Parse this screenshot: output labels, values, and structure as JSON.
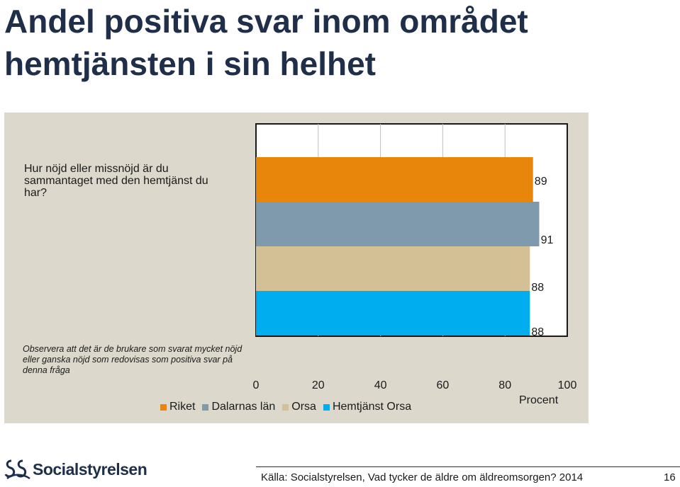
{
  "slide": {
    "title": "Andel positiva svar inom området hemtjänsten i sin helhet",
    "question": "Hur nöjd eller missnöjd är du sammantaget med den hemtjänst du har?",
    "note": "Observera att det är de brukare som svarat mycket nöjd eller ganska nöjd som redovisas som positiva svar på denna fråga",
    "source": "Källa: Socialstyrelsen, Vad tycker de äldre om äldreomsorgen? 2014",
    "page_number": "16",
    "logo_text": "Socialstyrelsen"
  },
  "chart_data": {
    "type": "bar",
    "orientation": "horizontal",
    "xlabel": "Procent",
    "xlim": [
      0,
      100
    ],
    "xticks": [
      "0",
      "20",
      "40",
      "60",
      "80",
      "100"
    ],
    "grid": "vertical",
    "legend_position": "bottom",
    "series": [
      {
        "name": "Riket",
        "value": 89,
        "label": "89",
        "color": "#e8860b"
      },
      {
        "name": "Dalarnas län",
        "value": 91,
        "label": "91",
        "color": "#7f9aad"
      },
      {
        "name": "Orsa",
        "value": 88,
        "label": "88",
        "color": "#d4c095"
      },
      {
        "name": "Hemtjänst Orsa",
        "value": 88,
        "label": "88",
        "color": "#00adef"
      }
    ]
  }
}
